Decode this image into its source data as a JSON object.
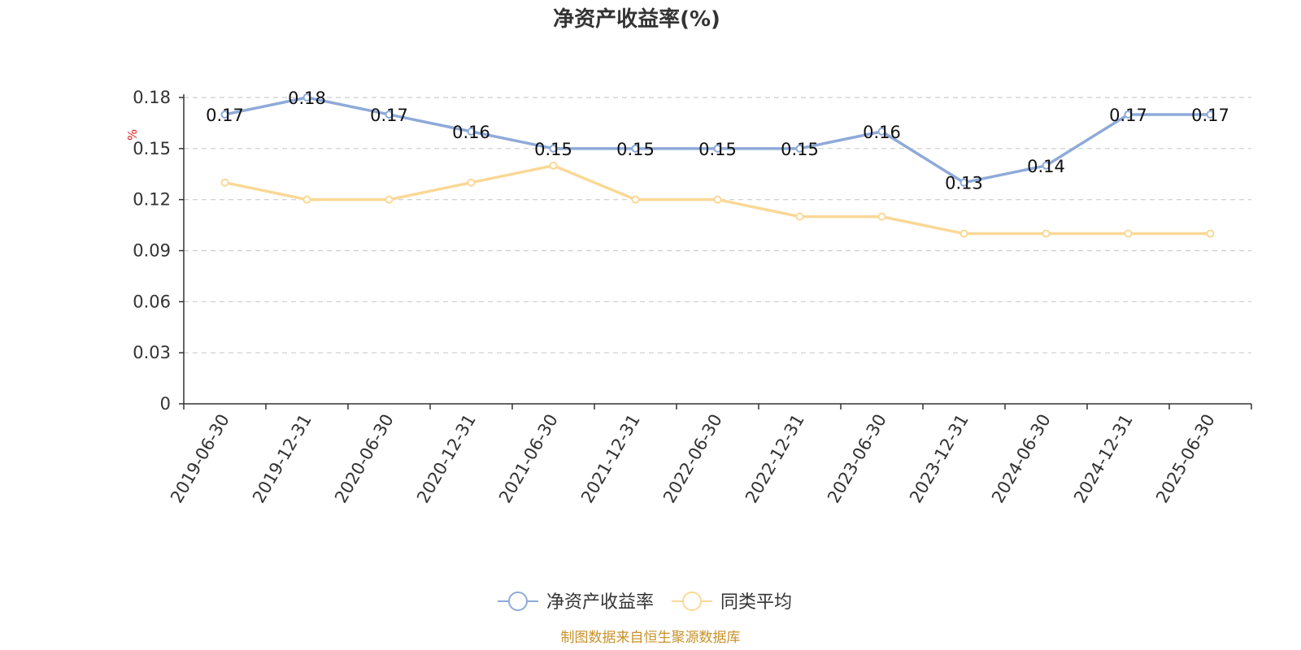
{
  "chart_data": {
    "type": "line",
    "title": "净资产收益率(%)",
    "ylabel": "%",
    "ylim": [
      0,
      0.18
    ],
    "yticks": [
      "0",
      "0.03",
      "0.06",
      "0.09",
      "0.12",
      "0.15",
      "0.18"
    ],
    "ytick_values": [
      0,
      0.03,
      0.06,
      0.09,
      0.12,
      0.15,
      0.18
    ],
    "grid": true,
    "legend_position": "bottom",
    "categories": [
      "2019-06-30",
      "2019-12-31",
      "2020-06-30",
      "2020-12-31",
      "2021-06-30",
      "2021-12-31",
      "2022-06-30",
      "2022-12-31",
      "2023-06-30",
      "2023-12-31",
      "2024-06-30",
      "2024-12-31",
      "2025-06-30"
    ],
    "series": [
      {
        "name": "净资产收益率",
        "color": "#8eaad8",
        "values": [
          0.17,
          0.18,
          0.17,
          0.16,
          0.15,
          0.15,
          0.15,
          0.15,
          0.16,
          0.13,
          0.14,
          0.17,
          0.17
        ],
        "labels": [
          "0.17",
          "0.18",
          "0.17",
          "0.16",
          "0.15",
          "0.15",
          "0.15",
          "0.15",
          "0.16",
          "0.13",
          "0.14",
          "0.17",
          "0.17"
        ]
      },
      {
        "name": "同类平均",
        "color": "#fad896",
        "values": [
          0.13,
          0.12,
          0.12,
          0.13,
          0.14,
          0.12,
          0.12,
          0.11,
          0.11,
          0.1,
          0.1,
          0.1,
          0.1
        ]
      }
    ],
    "source": "制图数据来自恒生聚源数据库",
    "source_color": "#c8922a",
    "unit_color": "#e02020"
  }
}
